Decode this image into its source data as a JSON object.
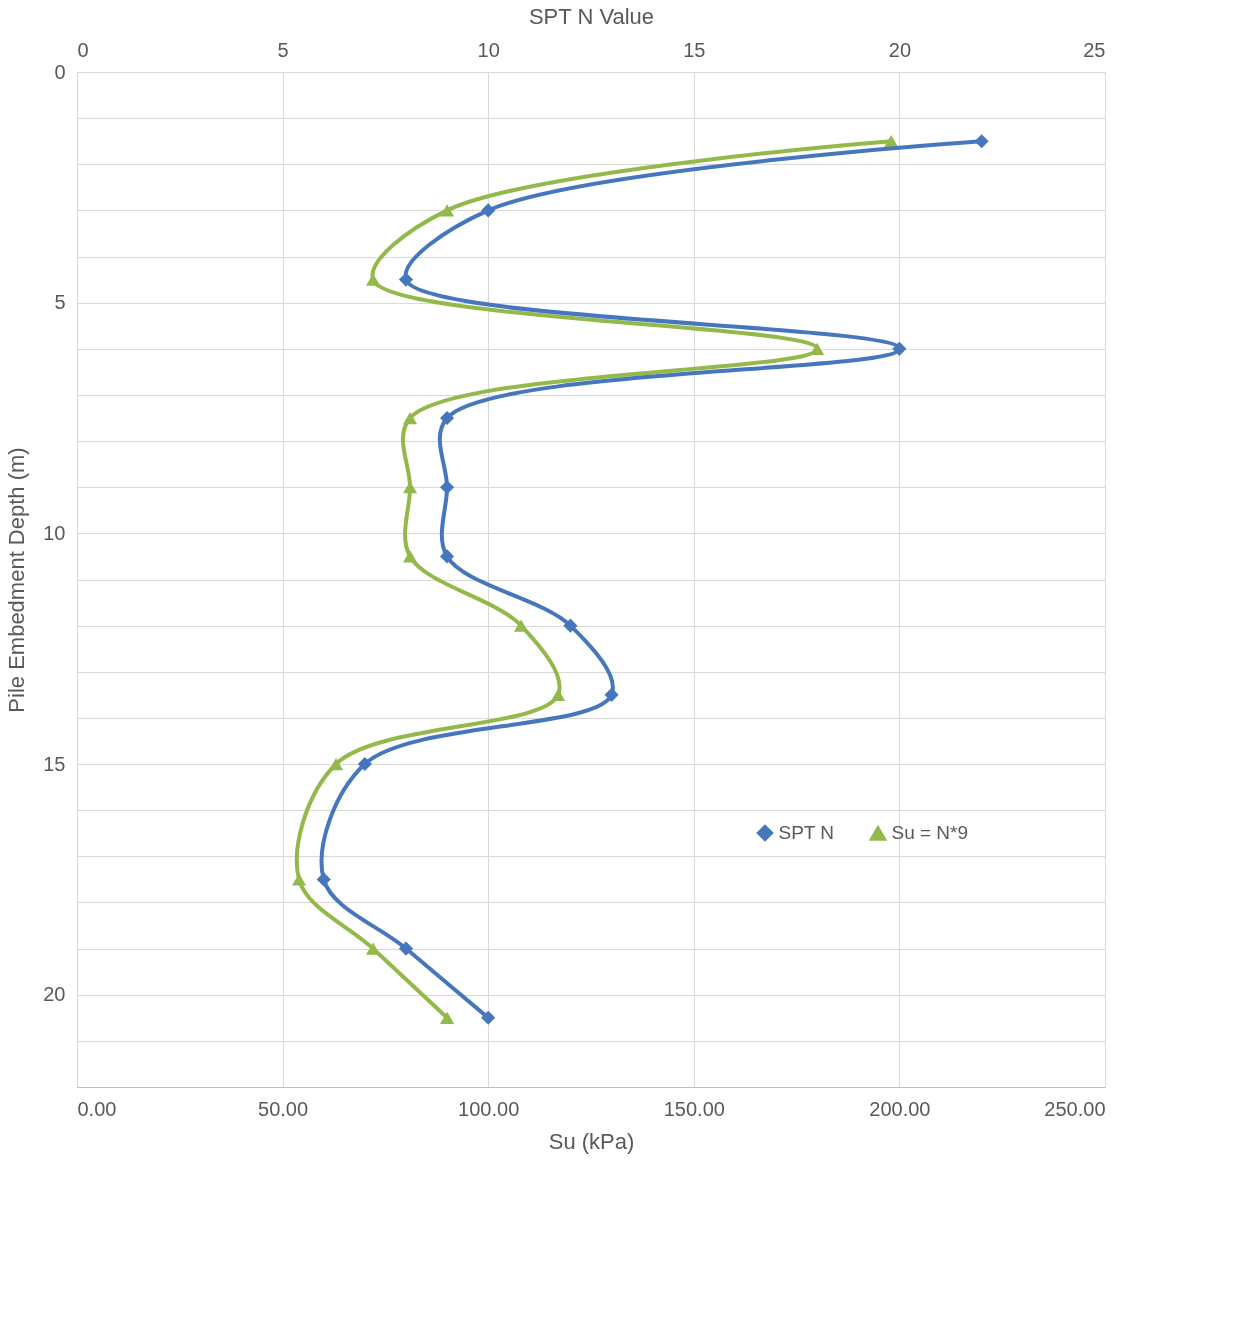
{
  "chart_data": {
    "type": "line",
    "xlabel": "Su (kPa)",
    "x2label": "SPT N Value",
    "ylabel": "Pile Embedment Depth (m)",
    "xlim": [
      0,
      250
    ],
    "xticks": [
      {
        "value": 0,
        "label": "0.00"
      },
      {
        "value": 50,
        "label": "50.00"
      },
      {
        "value": 100,
        "label": "100.00"
      },
      {
        "value": 150,
        "label": "150.00"
      },
      {
        "value": 200,
        "label": "200.00"
      },
      {
        "value": 250,
        "label": "250.00"
      }
    ],
    "x2lim": [
      0,
      25
    ],
    "x2ticks": [
      0,
      5,
      10,
      15,
      20,
      25
    ],
    "ylim": [
      22,
      0
    ],
    "yticks": [
      0,
      {
        "value": 1,
        "label": null
      },
      {
        "value": 2,
        "label": null
      },
      {
        "value": 3,
        "label": null
      },
      {
        "value": 4,
        "label": null
      },
      5,
      {
        "value": 6,
        "label": null
      },
      {
        "value": 7,
        "label": null
      },
      {
        "value": 8,
        "label": null
      },
      {
        "value": 9,
        "label": null
      },
      10,
      {
        "value": 11,
        "label": null
      },
      {
        "value": 12,
        "label": null
      },
      {
        "value": 13,
        "label": null
      },
      {
        "value": 14,
        "label": null
      },
      15,
      {
        "value": 16,
        "label": null
      },
      {
        "value": 17,
        "label": null
      },
      {
        "value": 18,
        "label": null
      },
      {
        "value": 19,
        "label": null
      },
      20,
      {
        "value": 21,
        "label": null
      }
    ],
    "grid": true,
    "legend": "right",
    "line_style": "solid",
    "series": [
      {
        "name": "SPT N",
        "color": "#4677be",
        "axis": "x2",
        "marker": "diamond",
        "x": [
          22,
          10,
          8,
          20,
          9,
          9,
          9,
          12,
          13,
          7,
          6,
          8,
          10
        ],
        "values": [
          1.5,
          3,
          4.5,
          6,
          7.5,
          9,
          10.5,
          12,
          13.5,
          15,
          17.5,
          19,
          20.5
        ]
      },
      {
        "name": "Su = N*9",
        "color": "#93b94a",
        "marker": "triangle",
        "x": [
          198,
          90,
          72,
          180,
          81,
          81,
          81,
          108,
          117,
          63,
          54,
          72,
          90
        ],
        "values": [
          1.5,
          3,
          4.5,
          6,
          7.5,
          9,
          10.5,
          12,
          13.5,
          15,
          17.5,
          19,
          20.5
        ]
      }
    ]
  }
}
